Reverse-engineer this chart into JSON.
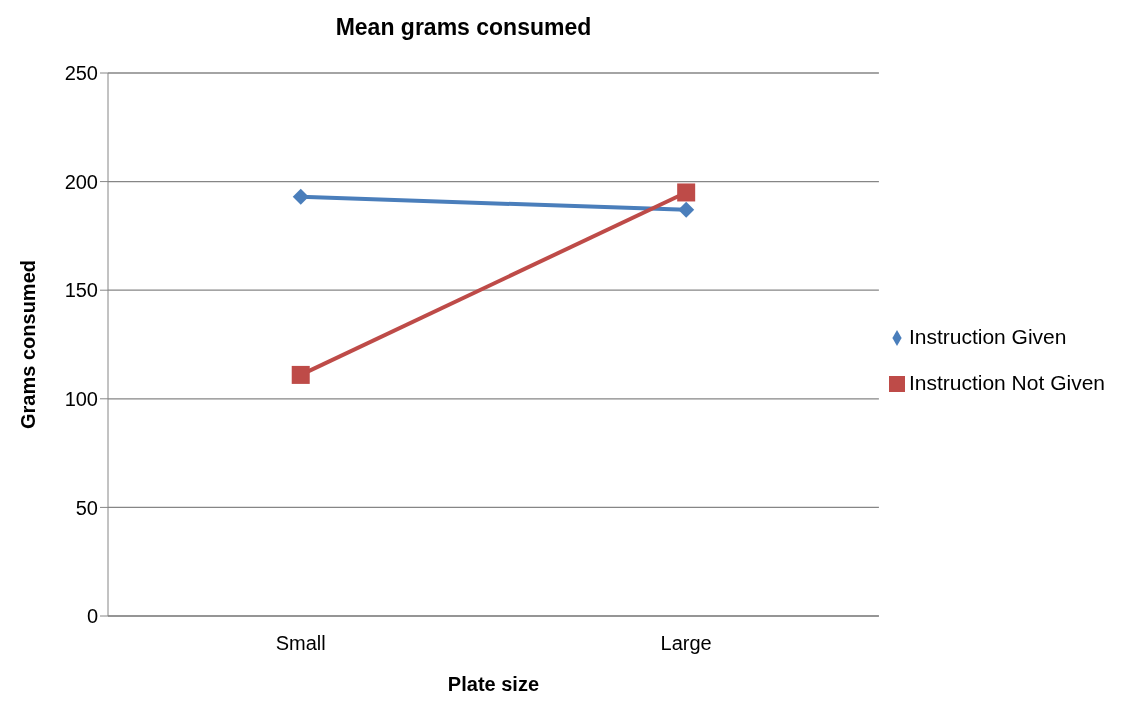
{
  "chart_data": {
    "type": "line",
    "title": "Mean grams consumed",
    "xlabel": "Plate size",
    "ylabel": "Grams consumed",
    "categories": [
      "Small",
      "Large"
    ],
    "series": [
      {
        "name": "Instruction Given",
        "color": "#4a7ebb",
        "values": [
          193,
          187
        ],
        "marker": "diamond"
      },
      {
        "name": "Instruction Not Given",
        "color": "#be4b48",
        "values": [
          111,
          195
        ],
        "marker": "square"
      }
    ],
    "ylim": [
      0,
      250
    ],
    "yticks": [
      0,
      50,
      100,
      150,
      200,
      250
    ],
    "grid": "y",
    "legend": "right",
    "line_style": "solid"
  }
}
